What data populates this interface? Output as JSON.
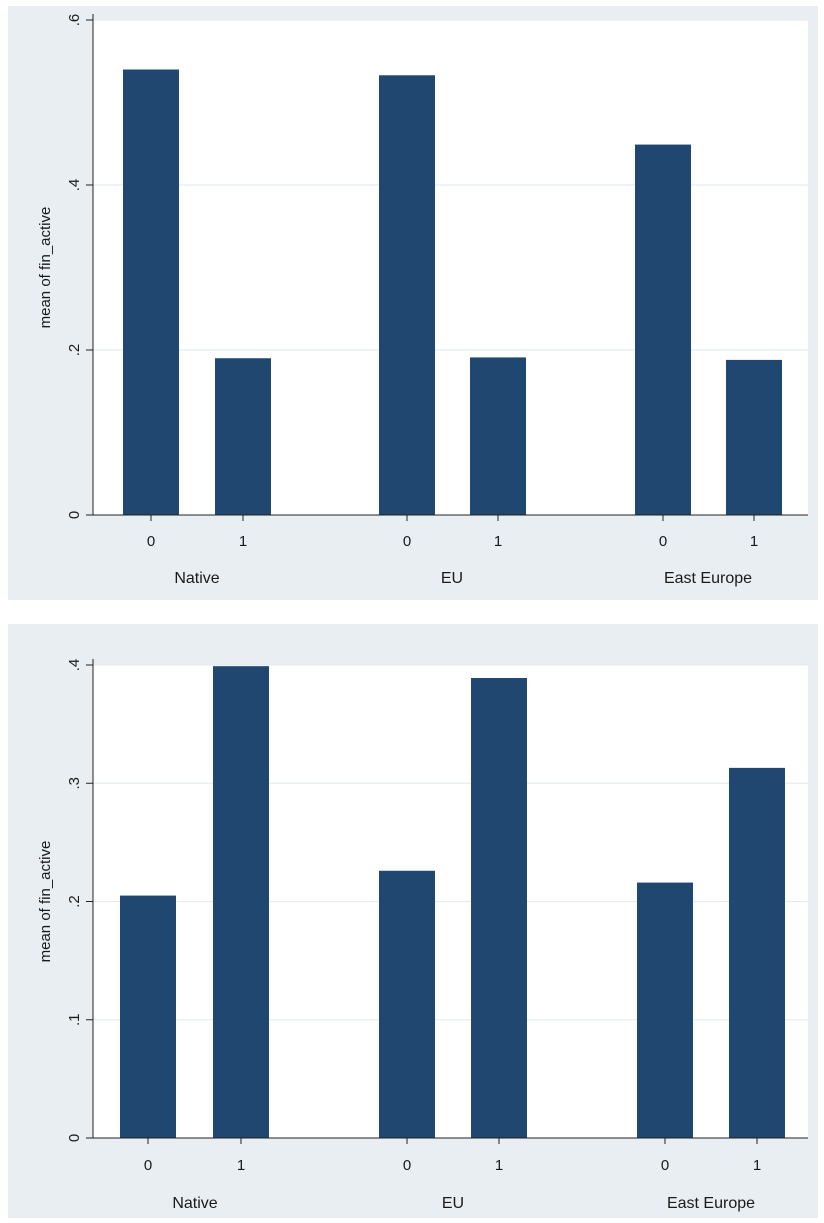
{
  "colors": {
    "outer_background": "#e8eef2",
    "plot_background": "#ffffff",
    "bar": "#1f4770",
    "grid": "#e6ecef",
    "axis": "#222222"
  },
  "chart_data": [
    {
      "type": "bar",
      "ylabel": "mean of fin_active",
      "ylim": [
        0,
        0.6
      ],
      "yticks": [
        0,
        0.2,
        0.4,
        0.6
      ],
      "ytick_labels": [
        "0",
        ".2",
        ".4",
        ".6"
      ],
      "grid": true,
      "groups": [
        {
          "label": "Native",
          "categories": [
            "0",
            "1"
          ],
          "values": [
            0.54,
            0.19
          ]
        },
        {
          "label": "EU",
          "categories": [
            "0",
            "1"
          ],
          "values": [
            0.533,
            0.191
          ]
        },
        {
          "label": "East Europe",
          "categories": [
            "0",
            "1"
          ],
          "values": [
            0.449,
            0.188
          ]
        }
      ]
    },
    {
      "type": "bar",
      "ylabel": "mean of fin_active",
      "ylim": [
        0,
        0.4
      ],
      "yticks": [
        0,
        0.1,
        0.2,
        0.3,
        0.4
      ],
      "ytick_labels": [
        "0",
        ".1",
        ".2",
        ".3",
        ".4"
      ],
      "grid": true,
      "groups": [
        {
          "label": "Native",
          "categories": [
            "0",
            "1"
          ],
          "values": [
            0.205,
            0.399
          ]
        },
        {
          "label": "EU",
          "categories": [
            "0",
            "1"
          ],
          "values": [
            0.226,
            0.389
          ]
        },
        {
          "label": "East Europe",
          "categories": [
            "0",
            "1"
          ],
          "values": [
            0.216,
            0.313
          ]
        }
      ]
    }
  ]
}
